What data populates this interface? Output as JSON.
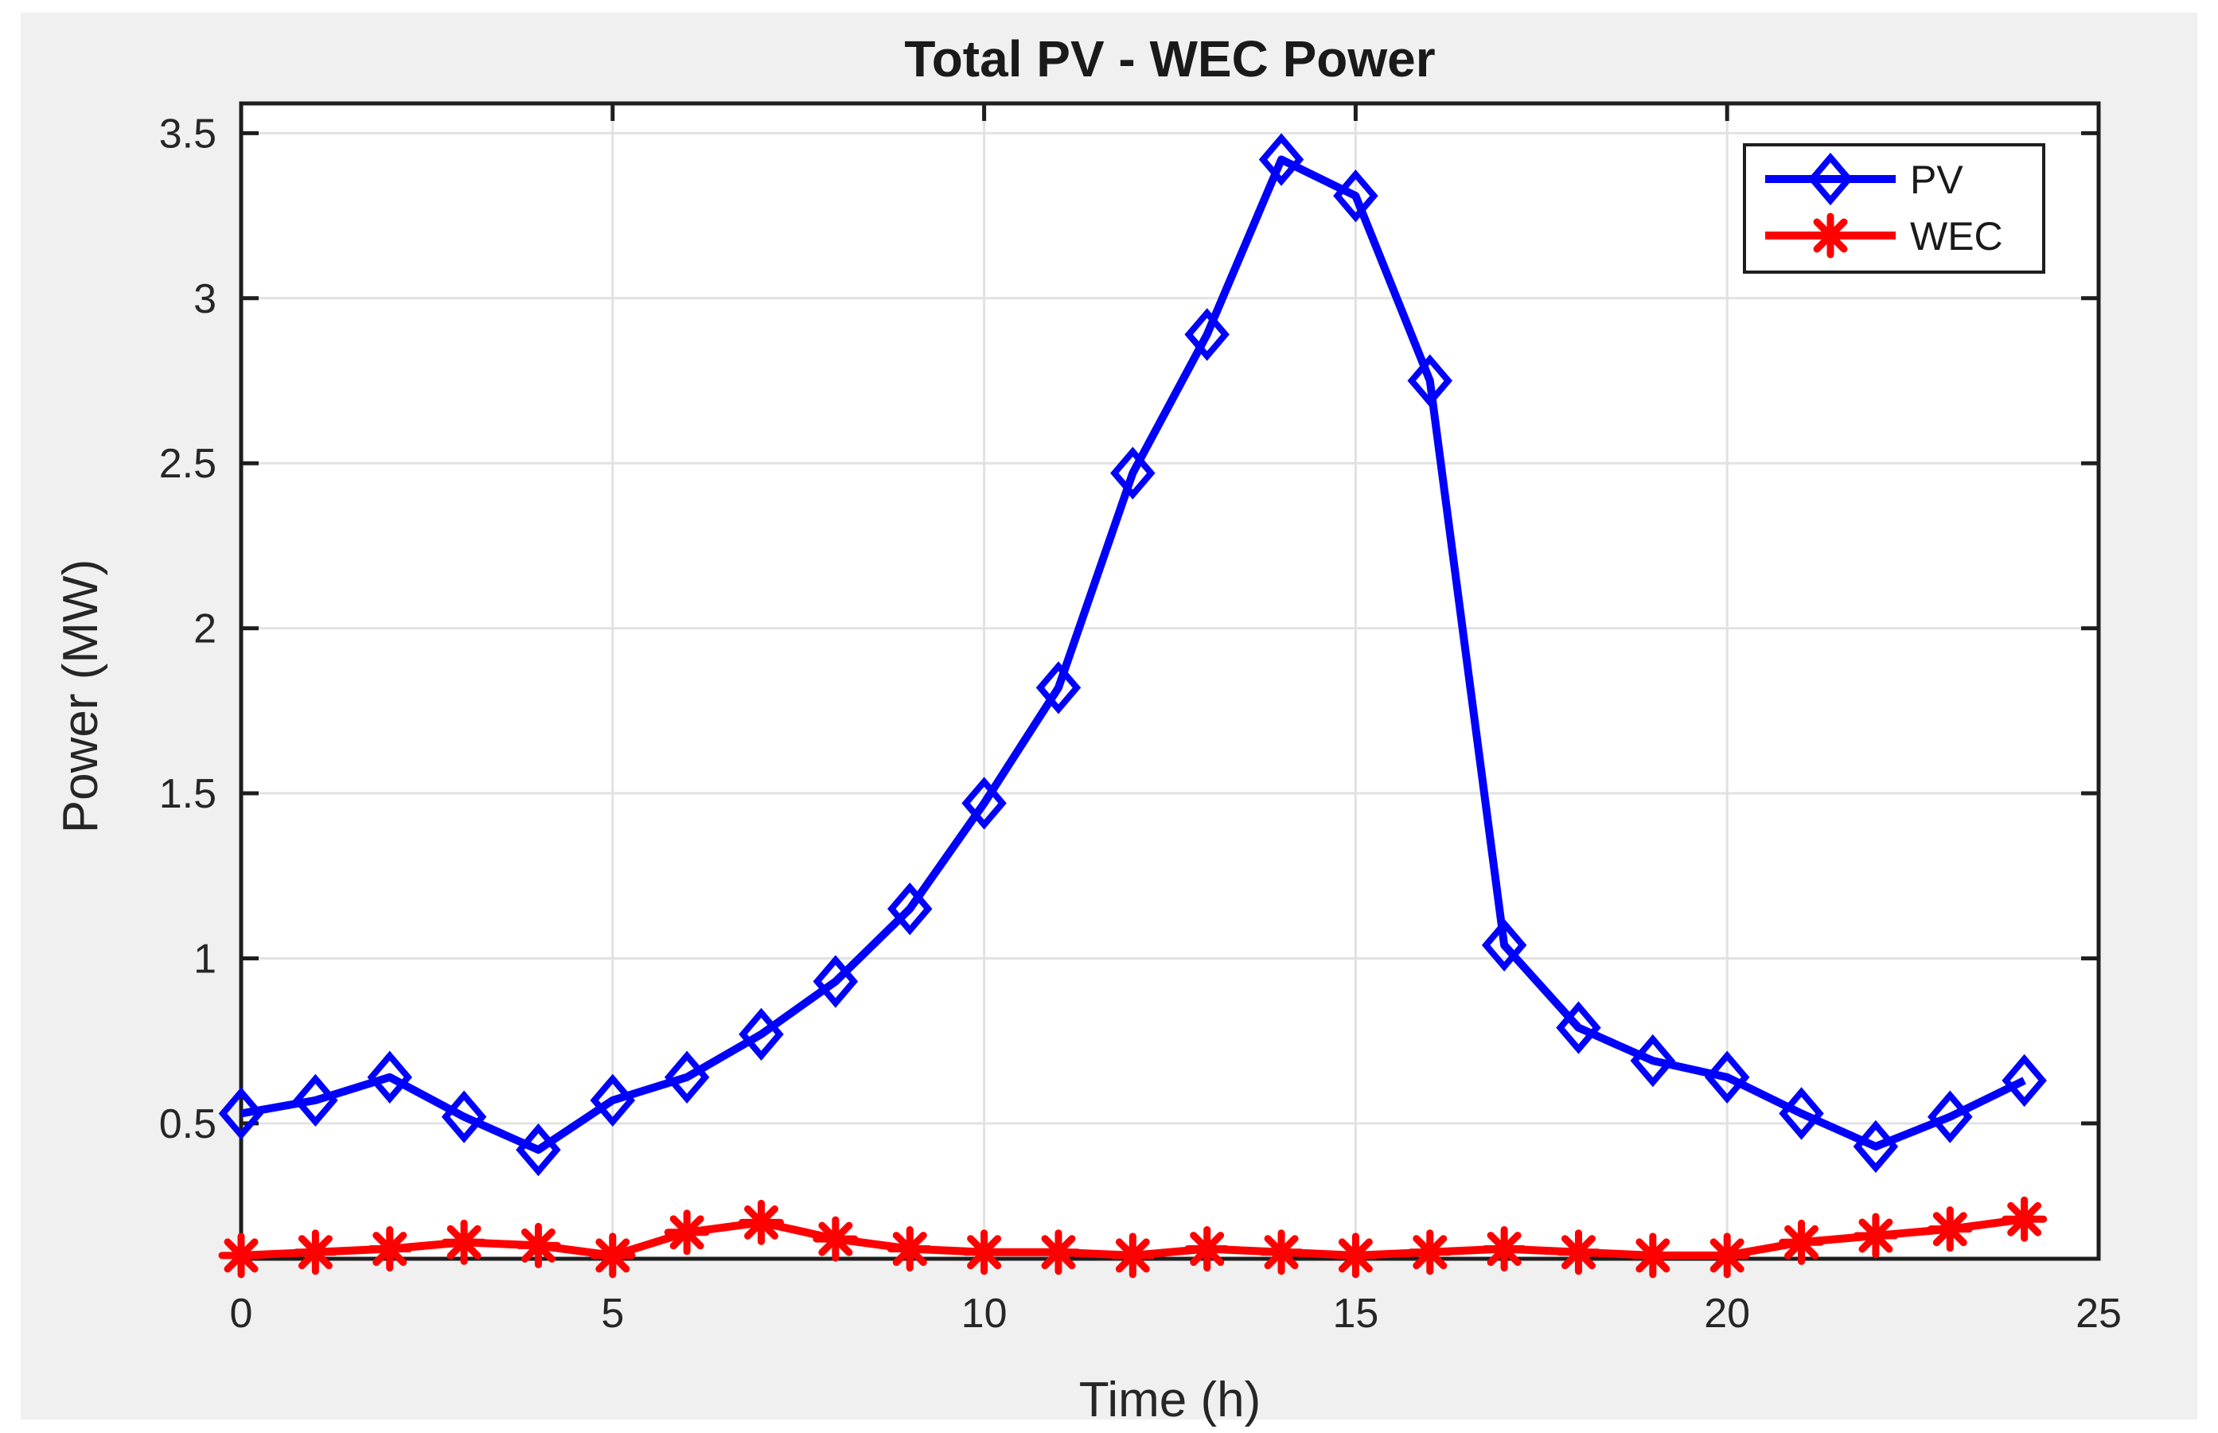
{
  "figure": {
    "background": "#F0F0F0",
    "plot_background": "#FFFFFF",
    "axis_color": "#1E1E1E",
    "grid_color": "#E2E2E2",
    "tick_label_color": "#262626"
  },
  "chart_data": {
    "type": "line",
    "title": "Total PV - WEC Power",
    "xlabel": "Time (h)",
    "ylabel": "Power (MW)",
    "x": [
      0,
      1,
      2,
      3,
      4,
      5,
      6,
      7,
      8,
      9,
      10,
      11,
      12,
      13,
      14,
      15,
      16,
      17,
      18,
      19,
      20,
      21,
      22,
      23,
      24
    ],
    "series": [
      {
        "name": "PV",
        "color": "#0000FF",
        "marker": "diamond",
        "values": [
          0.53,
          0.57,
          0.64,
          0.52,
          0.42,
          0.57,
          0.64,
          0.77,
          0.93,
          1.15,
          1.47,
          1.82,
          2.47,
          2.89,
          3.42,
          3.31,
          2.75,
          1.04,
          0.79,
          0.69,
          0.64,
          0.53,
          0.43,
          0.52,
          0.63
        ]
      },
      {
        "name": "WEC",
        "color": "#FF0000",
        "marker": "asterisk",
        "values": [
          0.1,
          0.11,
          0.12,
          0.14,
          0.13,
          0.1,
          0.17,
          0.2,
          0.15,
          0.12,
          0.11,
          0.11,
          0.1,
          0.12,
          0.11,
          0.1,
          0.11,
          0.12,
          0.11,
          0.1,
          0.1,
          0.14,
          0.16,
          0.18,
          0.21
        ]
      }
    ],
    "xlim": [
      0,
      25
    ],
    "ylim": [
      0.09,
      3.59
    ],
    "xticks": [
      0,
      5,
      10,
      15,
      20,
      25
    ],
    "yticks": [
      0.5,
      1,
      1.5,
      2,
      2.5,
      3,
      3.5
    ],
    "grid": true,
    "legend_position": "top-right"
  }
}
